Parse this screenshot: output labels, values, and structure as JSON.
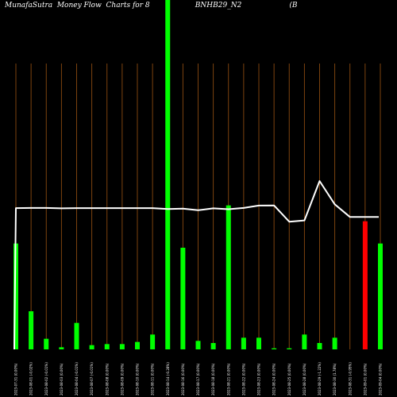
{
  "chart_data": {
    "type": "bar",
    "title": "MunafaSutra  Money Flow  Charts for 8                    BNHB29_N2                     (B",
    "xlabel": "",
    "ylabel": "",
    "grid": false,
    "categories": [
      "2023-07-31 (0.00%)",
      "2023-08-01 (-0.02%)",
      "2023-08-02 (-0.01%)",
      "2023-08-03 (0.00%)",
      "2023-08-04 (-0.01%)",
      "2023-08-07 (-0.01%)",
      "2023-08-08 (0.00%)",
      "2023-08-09 (0.00%)",
      "2023-08-10 (0.00%)",
      "2023-08-11 (0.00%)",
      "2023-08-14 (-0.28%)",
      "2023-08-16 (0.00%)",
      "2023-08-17 (0.00%)",
      "2023-08-18 (0.00%)",
      "2023-08-21 (0.00%)",
      "2023-08-22 (0.00%)",
      "2023-08-23 (0.00%)",
      "2023-08-24 (0.00%)",
      "2023-08-25 (0.00%)",
      "2023-08-28 (0.00%)",
      "2023-08-29 (-1.22%)",
      "2023-08-30 (1.78%)",
      "2023-08-31 (-0.95%)",
      "2023-09-01 (0.00%)",
      "2023-09-04 (0.00%)"
    ],
    "series": [
      {
        "values": [
          100,
          36,
          10,
          2,
          25,
          4,
          5,
          5,
          7,
          14,
          270,
          96,
          8,
          6,
          136,
          11,
          11,
          1,
          1,
          14,
          6,
          11,
          0,
          0,
          100
        ],
        "colors": [
          "#00ff00",
          "#00ff00",
          "#00ff00",
          "#00ff00",
          "#00ff00",
          "#00ff00",
          "#00ff00",
          "#00ff00",
          "#00ff00",
          "#00ff00",
          "#00ff00",
          "#00ff00",
          "#00ff00",
          "#00ff00",
          "#00ff00",
          "#00ff00",
          "#00ff00",
          "#00ff00",
          "#00ff00",
          "#00ff00",
          "#00ff00",
          "#00ff00",
          "#00ff00",
          "#ff0000",
          "#00ff00"
        ],
        "overlay_heights": [
          0,
          0,
          0,
          0,
          0,
          0,
          0,
          0,
          0,
          0,
          0,
          0,
          0,
          0,
          0,
          0,
          0,
          0,
          0,
          0,
          0,
          0,
          0,
          121,
          0
        ]
      },
      {
        "type": "line",
        "color": "#ffffff",
        "values": [
          133.4,
          133.6,
          133.6,
          133.2,
          133.4,
          133.4,
          133.4,
          133.4,
          133.4,
          133.4,
          132.6,
          133.0,
          131.4,
          133.2,
          132.4,
          133.6,
          135.8,
          136.0,
          120.6,
          121.8,
          159.0,
          137.0,
          125.0,
          125.0,
          125.0
        ]
      }
    ],
    "ylim": [
      0,
      270
    ]
  }
}
